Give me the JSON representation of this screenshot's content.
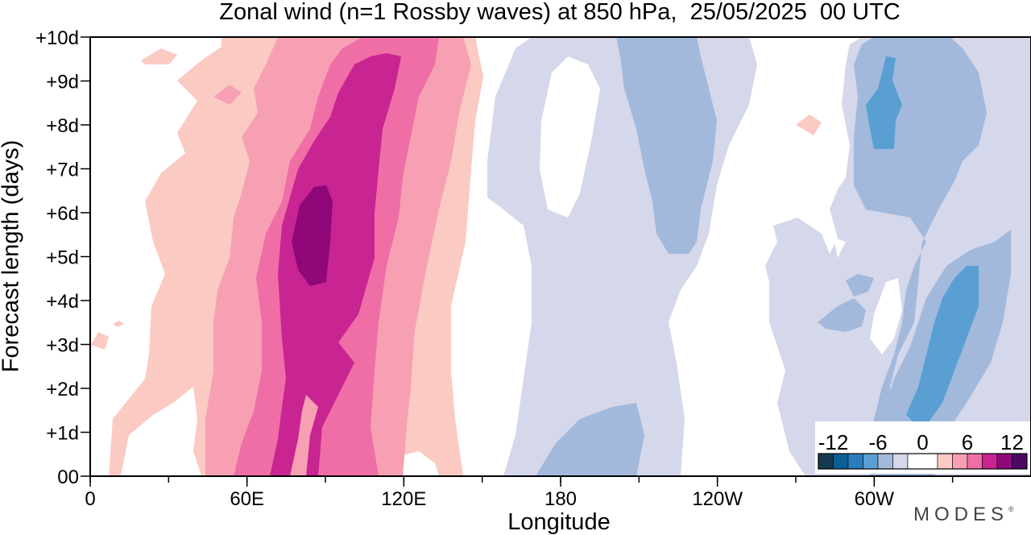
{
  "chart_data": {
    "type": "heatmap",
    "title": "Zonal wind (n=1 Rossby waves) at 850 hPa,  25/05/2025  00 UTC",
    "xlabel": "Longitude",
    "ylabel": "Forecast length (days)",
    "x_ticks": [
      {
        "lon": 0,
        "label": "0"
      },
      {
        "lon": 60,
        "label": "60E"
      },
      {
        "lon": 120,
        "label": "120E"
      },
      {
        "lon": 180,
        "label": "180"
      },
      {
        "lon": 240,
        "label": "120W"
      },
      {
        "lon": 300,
        "label": "60W"
      }
    ],
    "x_minor_step": 30,
    "xlim": [
      0,
      360
    ],
    "y_ticks": [
      {
        "day": 0,
        "label": "00"
      },
      {
        "day": 1,
        "label": "+1d"
      },
      {
        "day": 2,
        "label": "+2d"
      },
      {
        "day": 3,
        "label": "+3d"
      },
      {
        "day": 4,
        "label": "+4d"
      },
      {
        "day": 5,
        "label": "+5d"
      },
      {
        "day": 6,
        "label": "+6d"
      },
      {
        "day": 7,
        "label": "+7d"
      },
      {
        "day": 8,
        "label": "+8d"
      },
      {
        "day": 9,
        "label": "+9d"
      },
      {
        "day": 10,
        "label": "+10d"
      }
    ],
    "ylim": [
      0,
      10
    ],
    "grid": false,
    "colorbar": {
      "position": "bottom-right",
      "labels": [
        {
          "value": -12,
          "label": "-12"
        },
        {
          "value": -6,
          "label": "-6"
        },
        {
          "value": 0,
          "label": "0"
        },
        {
          "value": 6,
          "label": "6"
        },
        {
          "value": 12,
          "label": "12"
        }
      ],
      "range": [
        -14,
        14
      ],
      "levels": [
        {
          "min": -14,
          "max": -12,
          "color": "#16394f"
        },
        {
          "min": -12,
          "max": -10,
          "color": "#0c5f95"
        },
        {
          "min": -10,
          "max": -8,
          "color": "#2a7dbb"
        },
        {
          "min": -8,
          "max": -6,
          "color": "#5a9fd2"
        },
        {
          "min": -6,
          "max": -4,
          "color": "#a2b9dc"
        },
        {
          "min": -4,
          "max": -2,
          "color": "#d5d7ea"
        },
        {
          "min": -2,
          "max": 2,
          "color": "#ffffff"
        },
        {
          "min": 2,
          "max": 4,
          "color": "#fbcac3"
        },
        {
          "min": 4,
          "max": 6,
          "color": "#f7a0b4"
        },
        {
          "min": 6,
          "max": 8,
          "color": "#ef6ea6"
        },
        {
          "min": 8,
          "max": 10,
          "color": "#c82492"
        },
        {
          "min": 10,
          "max": 12,
          "color": "#8f0779"
        },
        {
          "min": 12,
          "max": 14,
          "color": "#4d0863"
        }
      ]
    },
    "features": [
      {
        "sign": "westerly",
        "level": 1,
        "color": "#fbcac3",
        "lon_range": [
          3,
          140
        ],
        "day_range": [
          0,
          10
        ],
        "peak_lon": 80,
        "peak_day": 5
      },
      {
        "sign": "westerly",
        "level": 2,
        "color": "#f7a0b4",
        "lon_range": [
          30,
          142
        ],
        "day_range": [
          0,
          10
        ],
        "peak_lon": 85,
        "peak_day": 5
      },
      {
        "sign": "westerly",
        "level": 3,
        "color": "#ef6ea6",
        "lon_range": [
          56,
          126
        ],
        "day_range": [
          0,
          10
        ],
        "peak_lon": 88,
        "peak_day": 5
      },
      {
        "sign": "westerly",
        "level": 4,
        "color": "#c82492",
        "lon_range": [
          66,
          115
        ],
        "day_range": [
          0,
          9.6
        ],
        "peak_lon": 88,
        "peak_day": 5.4
      },
      {
        "sign": "westerly",
        "level": 5,
        "color": "#8f0779",
        "lon_range": [
          75,
          95
        ],
        "day_range": [
          4.4,
          6.6
        ],
        "peak_lon": 84,
        "peak_day": 5.4
      },
      {
        "sign": "easterly",
        "level": 1,
        "color": "#d5d7ea",
        "lon_range": [
          150,
          360
        ],
        "day_range": [
          0,
          10
        ],
        "peak_lon": 310,
        "peak_day": 3
      },
      {
        "sign": "easterly",
        "level": 2,
        "color": "#a2b9dc",
        "lon_range": [
          172,
          360
        ],
        "day_range": [
          0,
          10
        ],
        "peak_lon": 315,
        "peak_day": 3
      },
      {
        "sign": "easterly",
        "level": 3,
        "color": "#5a9fd2",
        "lon_range": [
          295,
          340
        ],
        "day_range": [
          0.8,
          9.6
        ],
        "peak_lon": 318,
        "peak_day": 2.5
      }
    ]
  },
  "brand": {
    "text": "MODES",
    "mark": "®"
  }
}
